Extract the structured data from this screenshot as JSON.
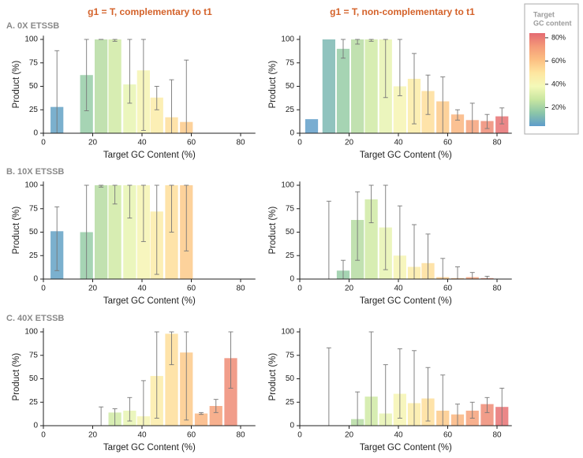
{
  "column_titles": [
    "g1 = T, complementary to t1",
    "g1 = T, non-complementary to t1"
  ],
  "row_labels": [
    "A. 0X ETSSB",
    "B. 10X ETSSB",
    "C. 40X ETSSB"
  ],
  "colorbar": {
    "title": [
      "Target",
      "GC content"
    ],
    "lim": [
      4,
      84
    ],
    "ticks": [
      {
        "value": 20,
        "label": "20%"
      },
      {
        "value": 40,
        "label": "40%"
      },
      {
        "value": 60,
        "label": "60%"
      },
      {
        "value": 80,
        "label": "80%"
      }
    ],
    "colors": [
      "#5e9ccb",
      "#8cc6a8",
      "#c8e6a0",
      "#f4f9b8",
      "#fee6a0",
      "#fcbf82",
      "#f49a78",
      "#e46a72"
    ]
  },
  "chart_data": [
    {
      "type": "bar",
      "xlabel": "Target GC Content (%)",
      "ylabel": "Product (%)",
      "x": [
        5.5,
        17.5,
        23.4,
        29,
        35,
        40.6,
        46,
        52,
        58,
        64,
        70,
        76
      ],
      "values": [
        28,
        62,
        100,
        100,
        52,
        67,
        38,
        17,
        12,
        0,
        0,
        0
      ],
      "error_low": [
        0,
        24,
        100,
        98,
        32,
        3,
        25,
        0,
        0,
        null,
        null,
        null
      ],
      "error_high": [
        88,
        100,
        100,
        100,
        100,
        100,
        50,
        57,
        78,
        null,
        null,
        null
      ],
      "xlim": [
        0,
        86
      ],
      "ylim": [
        0,
        104
      ],
      "xticks": [
        0,
        20,
        40,
        60,
        80
      ],
      "yticks": [
        0,
        25,
        50,
        75,
        100
      ]
    },
    {
      "type": "bar",
      "xlabel": "Target GC Content (%)",
      "ylabel": "Product (%)",
      "x": [
        4.8,
        11.8,
        17.6,
        23.4,
        29,
        34.8,
        40.6,
        46.4,
        52,
        58,
        64,
        70,
        76,
        82
      ],
      "values": [
        15,
        100,
        90,
        100,
        100,
        100,
        50,
        58,
        45,
        34,
        20,
        14,
        13,
        18
      ],
      "error_low": [
        null,
        null,
        80,
        95,
        98,
        38,
        40,
        10,
        20,
        0,
        14,
        0,
        5,
        10
      ],
      "error_high": [
        null,
        null,
        100,
        100,
        100,
        100,
        100,
        85,
        62,
        60,
        25,
        32,
        20,
        27
      ],
      "xlim": [
        0,
        86
      ],
      "ylim": [
        0,
        104
      ],
      "xticks": [
        0,
        20,
        40,
        60,
        80
      ],
      "yticks": [
        0,
        25,
        50,
        75,
        100
      ]
    },
    {
      "type": "bar",
      "xlabel": "Target GC Content (%)",
      "ylabel": "Product (%)",
      "x": [
        5.5,
        17.5,
        23.4,
        29,
        35,
        40.6,
        46,
        52,
        58,
        64,
        70
      ],
      "values": [
        51,
        50,
        100,
        100,
        100,
        100,
        72,
        100,
        100,
        0,
        0
      ],
      "error_low": [
        9,
        0,
        98,
        80,
        65,
        40,
        5,
        50,
        30,
        null,
        null
      ],
      "error_high": [
        77,
        100,
        100,
        100,
        100,
        100,
        100,
        100,
        100,
        null,
        null
      ],
      "xlim": [
        0,
        86
      ],
      "ylim": [
        0,
        104
      ],
      "xticks": [
        0,
        20,
        40,
        60,
        80
      ],
      "yticks": [
        0,
        25,
        50,
        75,
        100
      ]
    },
    {
      "type": "bar",
      "xlabel": "Target GC Content (%)",
      "ylabel": "Product (%)",
      "x": [
        4.8,
        11.8,
        17.6,
        23.4,
        29,
        34.8,
        40.6,
        46.4,
        52,
        58,
        64,
        70,
        76,
        82
      ],
      "values": [
        0,
        0,
        9,
        63,
        85,
        55,
        25,
        13,
        17,
        2,
        1,
        2,
        1,
        0
      ],
      "error_low": [
        null,
        0,
        0,
        20,
        60,
        10,
        0,
        0,
        0,
        0,
        0,
        0,
        0,
        null
      ],
      "error_high": [
        null,
        83,
        20,
        93,
        100,
        100,
        78,
        58,
        48,
        22,
        13,
        7,
        3,
        null
      ],
      "xlim": [
        0,
        86
      ],
      "ylim": [
        0,
        104
      ],
      "xticks": [
        0,
        20,
        40,
        60,
        80
      ],
      "yticks": [
        0,
        25,
        50,
        75,
        100
      ]
    },
    {
      "type": "bar",
      "xlabel": "Target GC Content (%)",
      "ylabel": "Product (%)",
      "x": [
        5.5,
        17.5,
        23.4,
        29,
        35,
        40.6,
        46,
        52,
        58,
        64,
        70,
        76
      ],
      "values": [
        0,
        0,
        0,
        14,
        16,
        10,
        53,
        98,
        78,
        13,
        21,
        72
      ],
      "error_low": [
        null,
        null,
        0,
        0,
        5,
        0,
        8,
        65,
        6,
        12,
        14,
        40
      ],
      "error_high": [
        null,
        null,
        20,
        18,
        30,
        48,
        100,
        100,
        100,
        14,
        28,
        100
      ],
      "xlim": [
        0,
        86
      ],
      "ylim": [
        0,
        104
      ],
      "xticks": [
        0,
        20,
        40,
        60,
        80
      ],
      "yticks": [
        0,
        25,
        50,
        75,
        100
      ]
    },
    {
      "type": "bar",
      "xlabel": "Target GC Content (%)",
      "ylabel": "Product (%)",
      "x": [
        4.8,
        11.8,
        17.6,
        23.4,
        29,
        34.8,
        40.6,
        46.4,
        52,
        58,
        64,
        70,
        76,
        82
      ],
      "values": [
        0,
        0,
        0,
        7,
        31,
        13,
        34,
        24,
        29,
        16,
        12,
        16,
        23,
        20
      ],
      "error_low": [
        null,
        0,
        null,
        0,
        0,
        0,
        8,
        0,
        5,
        0,
        0,
        8,
        14,
        0
      ],
      "error_high": [
        null,
        83,
        null,
        36,
        100,
        65,
        82,
        80,
        62,
        54,
        23,
        25,
        30,
        40
      ],
      "xlim": [
        0,
        86
      ],
      "ylim": [
        0,
        104
      ],
      "xticks": [
        0,
        20,
        40,
        60,
        80
      ],
      "yticks": [
        0,
        25,
        50,
        75,
        100
      ]
    }
  ]
}
